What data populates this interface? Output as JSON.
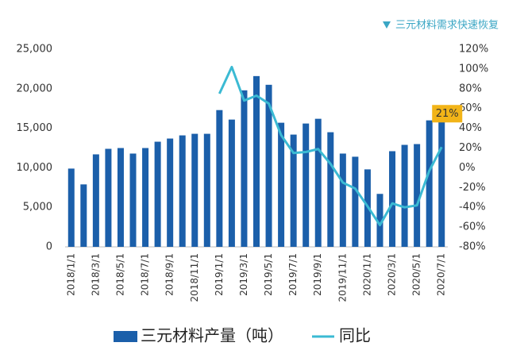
{
  "chart_data": {
    "type": "bar_line",
    "subtitle": "三元材料需求快速恢复",
    "categories": [
      "2018/1/1",
      null,
      "2018/3/1",
      null,
      "2018/5/1",
      null,
      "2018/7/1",
      null,
      "2018/9/1",
      null,
      "2018/11/1",
      null,
      "2019/1/1",
      null,
      "2019/3/1",
      null,
      "2019/5/1",
      null,
      "2019/7/1",
      null,
      "2019/9/1",
      null,
      "2019/11/1",
      null,
      "2020/1/1",
      null,
      "2020/3/1",
      null,
      "2020/5/1",
      null,
      "2020/7/1"
    ],
    "series": [
      {
        "name": "三元材料产量（吨）",
        "type": "bar",
        "color": "#1b5faa",
        "values": [
          9900,
          7900,
          11700,
          12400,
          12500,
          11800,
          12500,
          13300,
          13700,
          14100,
          14300,
          14300,
          17300,
          16100,
          19800,
          21600,
          20500,
          15700,
          14200,
          15600,
          16200,
          14500,
          11800,
          11400,
          9800,
          6700,
          12100,
          12900,
          13000,
          16000,
          17100
        ]
      },
      {
        "name": "同比",
        "type": "line",
        "color": "#3bbad3",
        "axis": "y2",
        "values": [
          null,
          null,
          null,
          null,
          null,
          null,
          null,
          null,
          null,
          null,
          null,
          null,
          75,
          102,
          68,
          73,
          65,
          33,
          15,
          16,
          19,
          4,
          -15,
          -21,
          -39,
          -58,
          -36,
          -40,
          -38,
          -3,
          21
        ],
        "value_labels": [
          null,
          null,
          null,
          null,
          null,
          null,
          null,
          null,
          null,
          null,
          null,
          null,
          null,
          null,
          null,
          null,
          null,
          null,
          null,
          null,
          null,
          null,
          null,
          null,
          null,
          null,
          null,
          null,
          null,
          null,
          "21%"
        ]
      }
    ],
    "ylim": [
      0,
      25000
    ],
    "yticks": [
      0,
      {
        "value": 5000,
        "label": "5,000"
      },
      {
        "value": 10000,
        "label": "10,000"
      },
      {
        "value": 15000,
        "label": "15,000"
      },
      {
        "value": 20000,
        "label": "20,000"
      },
      {
        "value": 25000,
        "label": "25,000"
      }
    ],
    "y2lim": [
      -80,
      120
    ],
    "y2ticks": [
      {
        "value": -80,
        "label": "-80%"
      },
      {
        "value": -60,
        "label": "-60%"
      },
      {
        "value": -40,
        "label": "-40%"
      },
      {
        "value": -20,
        "label": "-20%"
      },
      {
        "value": 0,
        "label": "0%"
      },
      {
        "value": 20,
        "label": "20%"
      },
      {
        "value": 40,
        "label": "40%"
      },
      {
        "value": 60,
        "label": "60%"
      },
      {
        "value": 80,
        "label": "80%"
      },
      {
        "value": 100,
        "label": "100%"
      },
      {
        "value": 120,
        "label": "120%"
      }
    ],
    "grid": false
  }
}
